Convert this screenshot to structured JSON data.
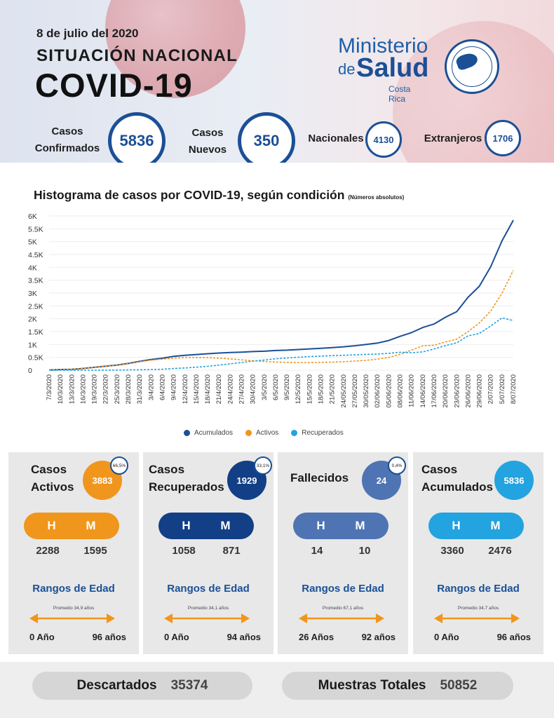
{
  "header": {
    "date": "8 de julio del 2020",
    "title_line1": "SITUACIÓN NACIONAL",
    "title_line2": "COVID-19",
    "logo": {
      "ministerio": "Ministerio",
      "de": "de",
      "salud": "Salud",
      "country": "Costa Rica"
    },
    "stats": [
      {
        "label_line1": "Casos",
        "label_line2": "Confirmados",
        "value": "5836"
      },
      {
        "label_line1": "Casos",
        "label_line2": "Nuevos",
        "value": "350"
      },
      {
        "label": "Nacionales",
        "value": "4130"
      },
      {
        "label": "Extranjeros",
        "value": "1706"
      }
    ]
  },
  "chart_title": "Histograma de casos por COVID-19, según condición",
  "chart_title_note": "(Números absolutos)",
  "chart_data": {
    "type": "line",
    "ylim": [
      0,
      6000
    ],
    "yticks": [
      0,
      500,
      1000,
      1500,
      2000,
      2500,
      3000,
      3500,
      4000,
      4500,
      5000,
      5500,
      6000
    ],
    "ytick_labels": [
      "0",
      "0.5K",
      "1K",
      "1.5K",
      "2K",
      "2.5K",
      "3K",
      "3.5K",
      "4K",
      "4.5K",
      "5K",
      "5.5K",
      "6K"
    ],
    "x_labels": [
      "7/3/2020",
      "10/3/2020",
      "13/3/2020",
      "16/3/2020",
      "19/3/2020",
      "22/3/2020",
      "25/3/2020",
      "28/3/2020",
      "31/3/2020",
      "3/4/2020",
      "6/4/2020",
      "9/4/2020",
      "12/4/2020",
      "15/4/2020",
      "18/4/2020",
      "21/4/2020",
      "24/4/2020",
      "27/4/2020",
      "30/4/2020",
      "3/5/2020",
      "6/5/2020",
      "9/5/2020",
      "12/5/2020",
      "15/5/2020",
      "18/5/2020",
      "21/5/2020",
      "24/05/2020",
      "27/05/2020",
      "30/05/2020",
      "02/06/2020",
      "05/06/2020",
      "08/06/2020",
      "11/06/2020",
      "14/06/2020",
      "17/06/2020",
      "20/06/2020",
      "23/06/2020",
      "26/06/2020",
      "29/06/2020",
      "2/07/2020",
      "5/07/2020",
      "8/07/2020"
    ],
    "series": [
      {
        "name": "Acumulados",
        "color": "#1b4f96",
        "style": "solid",
        "values": [
          9,
          26,
          35,
          69,
          113,
          158,
          201,
          263,
          347,
          416,
          467,
          539,
          577,
          612,
          642,
          669,
          687,
          705,
          725,
          739,
          765,
          780,
          804,
          830,
          853,
          882,
          911,
          951,
          1000,
          1056,
          1157,
          1318,
          1461,
          1662,
          1796,
          2058,
          2277,
          2836,
          3269,
          4023,
          5035,
          5836
        ]
      },
      {
        "name": "Activos",
        "color": "#f0961c",
        "style": "dashed",
        "values": [
          9,
          26,
          35,
          69,
          113,
          155,
          195,
          252,
          330,
          390,
          430,
          470,
          490,
          495,
          490,
          470,
          440,
          405,
          370,
          340,
          320,
          305,
          300,
          300,
          305,
          315,
          330,
          355,
          385,
          430,
          500,
          620,
          780,
          950,
          970,
          1100,
          1210,
          1500,
          1840,
          2300,
          3000,
          3883
        ]
      },
      {
        "name": "Recuperados",
        "color": "#23a3e0",
        "style": "dashed",
        "values": [
          0,
          0,
          0,
          0,
          0,
          3,
          6,
          11,
          17,
          26,
          37,
          69,
          87,
          117,
          152,
          199,
          247,
          300,
          355,
          399,
          445,
          475,
          504,
          530,
          548,
          567,
          581,
          596,
          615,
          626,
          657,
          698,
          681,
          712,
          826,
          958,
          1067,
          1336,
          1429,
          1723,
          2035,
          1929
        ]
      }
    ]
  },
  "cards": [
    {
      "title_line1": "Casos",
      "title_line2": "Activos",
      "value": "3883",
      "pct": "66,5%",
      "color": "#f0961c",
      "h": "2288",
      "m": "1595",
      "promedio": "Promedio 34,9 años",
      "age_min": "0 Año",
      "age_max": "96 años"
    },
    {
      "title_line1": "Casos",
      "title_line2": "Recuperados",
      "value": "1929",
      "pct": "33,1%",
      "color": "#123f86",
      "h": "1058",
      "m": "871",
      "promedio": "Promedio 34,1 años",
      "age_min": "0 Año",
      "age_max": "94 años"
    },
    {
      "title_line1": "Fallecidos",
      "title_line2": "",
      "value": "24",
      "pct": "0,4%",
      "color": "#4f74b3",
      "h": "14",
      "m": "10",
      "promedio": "Promedio 67,1 años",
      "age_min": "26 Años",
      "age_max": "92 años"
    },
    {
      "title_line1": "Casos",
      "title_line2": "Acumulados",
      "value": "5836",
      "pct": "",
      "color": "#23a3e0",
      "h": "3360",
      "m": "2476",
      "promedio": "Promedio 34,7 años",
      "age_min": "0 Año",
      "age_max": "96 años"
    }
  ],
  "labels": {
    "h": "H",
    "m": "M",
    "rangos": "Rangos de Edad"
  },
  "footer": {
    "descartados_label": "Descartados",
    "descartados_value": "35374",
    "muestras_label": "Muestras Totales",
    "muestras_value": "50852"
  }
}
